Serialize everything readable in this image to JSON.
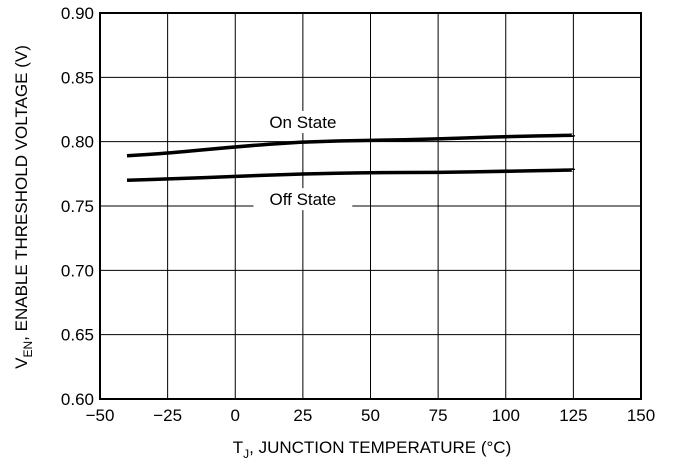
{
  "chart_data": {
    "type": "line",
    "title": "",
    "xlabel": {
      "main": "T",
      "sub": "J",
      "rest": ", JUNCTION TEMPERATURE (°C)"
    },
    "ylabel": {
      "main": "V",
      "sub": "EN",
      "rest": ", ENABLE THRESHOLD VOLTAGE (V)"
    },
    "xlim": [
      -50,
      150
    ],
    "ylim": [
      0.6,
      0.9
    ],
    "x_ticks": [
      "−50",
      "−25",
      "0",
      "25",
      "50",
      "75",
      "100",
      "125",
      "150"
    ],
    "x_tick_values": [
      -50,
      -25,
      0,
      25,
      50,
      75,
      100,
      125,
      150
    ],
    "y_ticks": [
      "0.60",
      "0.65",
      "0.70",
      "0.75",
      "0.80",
      "0.85",
      "0.90"
    ],
    "y_tick_values": [
      0.6,
      0.65,
      0.7,
      0.75,
      0.8,
      0.85,
      0.9
    ],
    "grid": true,
    "series": [
      {
        "name": "On State",
        "x": [
          -40,
          -25,
          0,
          25,
          50,
          75,
          100,
          125
        ],
        "y": [
          0.789,
          0.791,
          0.796,
          0.8,
          0.801,
          0.802,
          0.804,
          0.805
        ],
        "label_at": [
          25,
          0.813
        ]
      },
      {
        "name": "Off State",
        "x": [
          -40,
          -25,
          0,
          25,
          50,
          75,
          100,
          125
        ],
        "y": [
          0.77,
          0.771,
          0.773,
          0.775,
          0.776,
          0.776,
          0.777,
          0.778
        ],
        "label_at": [
          25,
          0.753
        ]
      }
    ]
  }
}
